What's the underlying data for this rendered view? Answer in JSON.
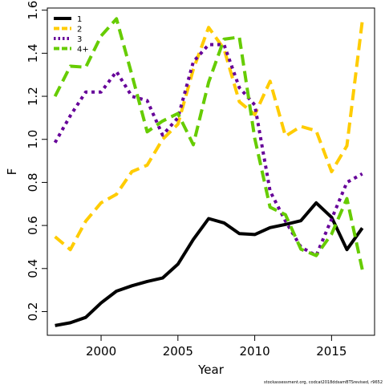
{
  "chart_data": {
    "type": "line",
    "xlabel": "Year",
    "ylabel": "F",
    "xlim": [
      1996.5,
      2017.8
    ],
    "ylim": [
      0.09,
      1.61
    ],
    "x_ticks": [
      2000,
      2005,
      2010,
      2015
    ],
    "y_ticks": [
      0.2,
      0.4,
      0.6,
      0.8,
      1.0,
      1.2,
      1.4,
      1.6
    ],
    "x_tick_labels": [
      "2000",
      "2005",
      "2010",
      "2015"
    ],
    "y_tick_labels": [
      "0.2",
      "0.4",
      "0.6",
      "0.8",
      "1.0",
      "1.2",
      "1.4",
      "1.6"
    ],
    "legend_position": "top-left",
    "grid": false,
    "x": [
      1997,
      1998,
      1999,
      2000,
      2001,
      2002,
      2003,
      2004,
      2005,
      2006,
      2007,
      2008,
      2009,
      2010,
      2011,
      2012,
      2013,
      2014,
      2015,
      2016,
      2017
    ],
    "series": [
      {
        "name": "1",
        "color": "#000000",
        "dash": "solid",
        "values": [
          0.135,
          0.148,
          0.173,
          0.24,
          0.295,
          0.32,
          0.34,
          0.356,
          0.42,
          0.535,
          0.632,
          0.612,
          0.562,
          0.558,
          0.59,
          0.605,
          0.622,
          0.705,
          0.638,
          0.488,
          0.588
        ]
      },
      {
        "name": "2",
        "color": "#FFCC00",
        "dash": "dashed",
        "values": [
          0.548,
          0.488,
          0.62,
          0.705,
          0.745,
          0.85,
          0.88,
          1.0,
          1.07,
          1.325,
          1.52,
          1.42,
          1.175,
          1.115,
          1.27,
          1.015,
          1.06,
          1.04,
          0.85,
          0.97,
          1.55
        ]
      },
      {
        "name": "3",
        "color": "#660099",
        "dash": "dotted",
        "values": [
          0.985,
          1.11,
          1.22,
          1.22,
          1.315,
          1.2,
          1.18,
          1.02,
          1.1,
          1.36,
          1.44,
          1.44,
          1.24,
          1.16,
          0.76,
          0.62,
          0.5,
          0.46,
          0.63,
          0.8,
          0.84
        ]
      },
      {
        "name": "4+",
        "color": "#66CC00",
        "dash": "dashed",
        "values": [
          1.2,
          1.34,
          1.335,
          1.48,
          1.56,
          1.3,
          1.035,
          1.085,
          1.12,
          0.975,
          1.265,
          1.465,
          1.475,
          1.005,
          0.685,
          0.65,
          0.49,
          0.46,
          0.56,
          0.725,
          0.395
        ]
      }
    ]
  },
  "footnote": "stockassessment.org, codcat2018ddsamBTSrevised, r9652"
}
